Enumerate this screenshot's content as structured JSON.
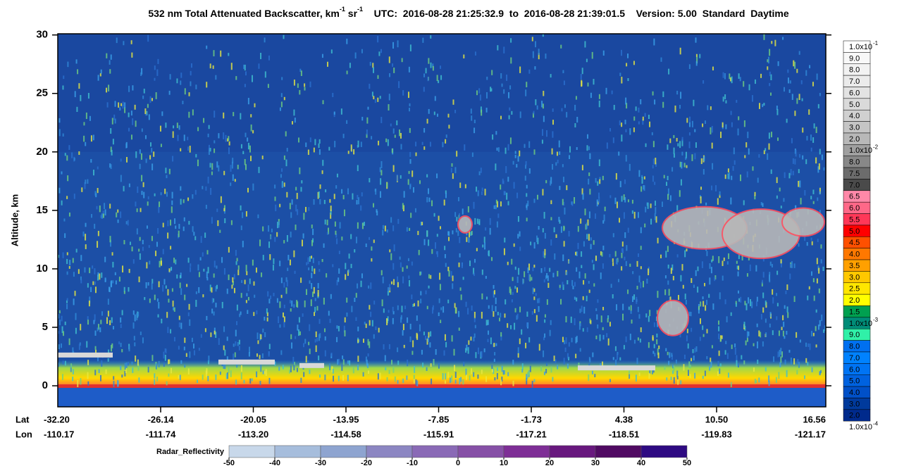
{
  "chart_data": {
    "type": "heatmap",
    "title_parts": [
      {
        "text": "532 nm Total Attenuated Backscatter, km"
      },
      {
        "sup": "-1"
      },
      {
        "text": " sr"
      },
      {
        "sup": "-1"
      },
      {
        "text": "    UTC:  2016-08-28 21:25:32.9  to  2016-08-28 21:39:01.5    Version: 5.00  Standard  Daytime"
      }
    ],
    "y_label": "Altitude, km",
    "ylim": [
      -1.8,
      30.1
    ],
    "yticks": [
      0,
      5,
      10,
      15,
      20,
      25,
      30
    ],
    "x_rows": [
      "Lat",
      "Lon"
    ],
    "lat": [
      "-32.20",
      "-26.14",
      "-20.05",
      "-13.95",
      "-7.85",
      "-1.73",
      "4.38",
      "10.50",
      "16.56"
    ],
    "lon": [
      "-110.17",
      "-111.74",
      "-113.20",
      "-114.58",
      "-115.91",
      "-117.21",
      "-118.51",
      "-119.83",
      "-121.17"
    ],
    "colorbar": {
      "labels": [
        {
          "text": "1.0x10",
          "exponent": "-1"
        },
        "9.0",
        "8.0",
        "7.0",
        "6.0",
        "5.0",
        "4.0",
        "3.0",
        "2.0",
        {
          "text": "1.0x10",
          "exponent": "-2"
        },
        "8.0",
        "7.5",
        "7.0",
        "6.5",
        "6.0",
        "5.5",
        "5.0",
        "4.5",
        "4.0",
        "3.5",
        "3.0",
        "2.5",
        "2.0",
        "1.5",
        {
          "text": "1.0x10",
          "exponent": "-3"
        },
        "9.0",
        "8.0",
        "7.0",
        "6.0",
        "5.0",
        "4.0",
        "3.0",
        "2.0",
        {
          "text": "1.0x10",
          "exponent": "-4"
        }
      ],
      "colors": [
        "#ffffff",
        "#f8f8f8",
        "#f2f2f2",
        "#ebebeb",
        "#e3e3e3",
        "#dadada",
        "#d0d0d0",
        "#c5c5c5",
        "#b8b8b8",
        "#a0a0a0",
        "#888888",
        "#6c6c6c",
        "#4a4a4a",
        "#ff88a8",
        "#ff6888",
        "#ff3858",
        "#ff0000",
        "#ff5000",
        "#ff7800",
        "#ffa000",
        "#ffc800",
        "#ffe600",
        "#ffff00",
        "#00a050",
        "#008c78",
        "#30f0a8",
        "#0070f0",
        "#0082ff",
        "#0074f4",
        "#0062e0",
        "#0050c8",
        "#003a9c",
        "#002a8c"
      ]
    },
    "radar": {
      "label": "Radar_Reflectivity",
      "xlim": [
        -50,
        50
      ],
      "xticks": [
        -50,
        -40,
        -30,
        -20,
        -10,
        0,
        10,
        20,
        30,
        40,
        50
      ],
      "colors": [
        "#c8d8ea",
        "#a6bddc",
        "#8ea4d0",
        "#8c86c2",
        "#8a6ab6",
        "#8650a6",
        "#7e2e96",
        "#68187e",
        "#500a62",
        "#2e0a82"
      ]
    }
  }
}
